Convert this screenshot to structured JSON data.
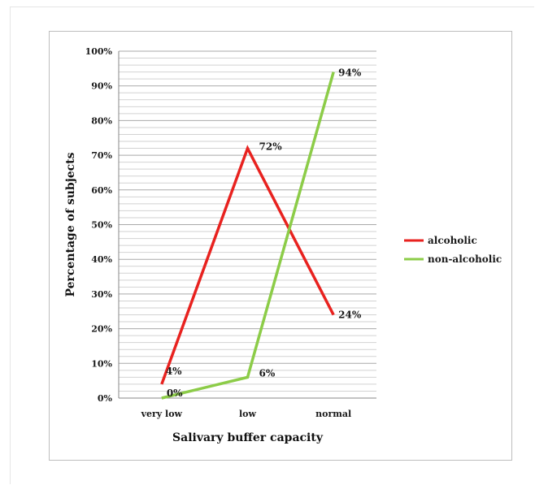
{
  "chart_data": {
    "type": "line",
    "title": "",
    "xlabel": "Salivary buffer capacity",
    "ylabel": "Percentage of subjects",
    "categories": [
      "very low",
      "low",
      "normal"
    ],
    "ylim": [
      0,
      100
    ],
    "y_tick_labels": [
      "0%",
      "10%",
      "20%",
      "30%",
      "40%",
      "50%",
      "60%",
      "70%",
      "80%",
      "90%",
      "100%"
    ],
    "grid": true,
    "legend_position": "right",
    "series": [
      {
        "name": "alcoholic",
        "color": "#e8221f",
        "values": [
          4,
          72,
          24
        ],
        "labels": [
          "4%",
          "72%",
          "24%"
        ]
      },
      {
        "name": "non-alcoholic",
        "color": "#8ccc48",
        "values": [
          0,
          6,
          94
        ],
        "labels": [
          "0%",
          "6%",
          "94%"
        ],
        "highlight_label_color": "#e8221f"
      }
    ]
  }
}
